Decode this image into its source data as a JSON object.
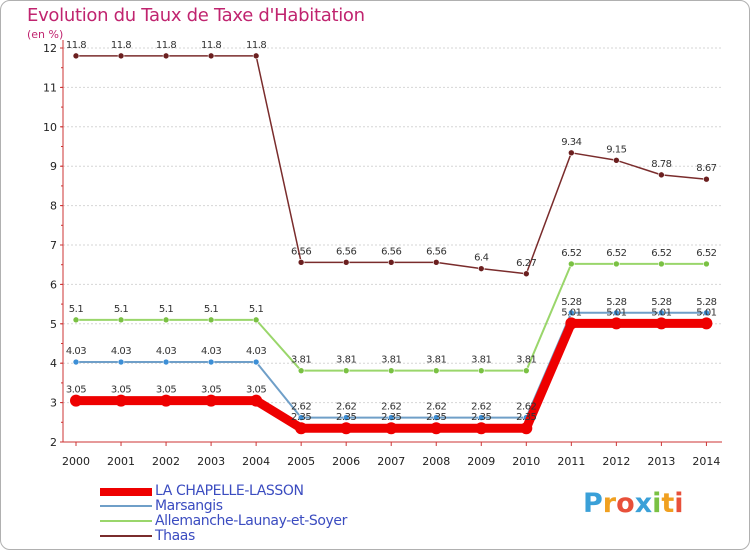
{
  "page": {
    "title": "Evolution du Taux de Taxe d'Habitation",
    "unit": "(en %)"
  },
  "logo": {
    "letters": [
      "P",
      "r",
      "o",
      "x",
      "i",
      "t",
      "i"
    ],
    "colors": [
      "#3aa0d8",
      "#f0a020",
      "#e8503a",
      "#3aa0d8",
      "#7ac143",
      "#f0a020",
      "#e8503a"
    ]
  },
  "chart_data": {
    "type": "line",
    "title": "Evolution du Taux de Taxe d'Habitation",
    "ylabel": "(en %)",
    "xlabel": "",
    "x": [
      "2000",
      "2001",
      "2002",
      "2003",
      "2004",
      "2005",
      "2006",
      "2007",
      "2008",
      "2009",
      "2010",
      "2011",
      "2012",
      "2013",
      "2014"
    ],
    "ylim": [
      2,
      12
    ],
    "yticks": [
      "2",
      "3",
      "4",
      "5",
      "6",
      "7",
      "8",
      "9",
      "10",
      "11",
      "12"
    ],
    "series": [
      {
        "name": "LA CHAPELLE-LASSON",
        "color": "#ee0000",
        "values": [
          3.05,
          3.05,
          3.05,
          3.05,
          3.05,
          2.35,
          2.35,
          2.35,
          2.35,
          2.35,
          2.35,
          5.01,
          5.01,
          5.01,
          5.01
        ],
        "labels": [
          "3.05",
          "3.05",
          "3.05",
          "3.05",
          "3.05",
          "2.35",
          "2.35",
          "2.35",
          "2.35",
          "2.35",
          "2.35",
          "5.01",
          "5.01",
          "5.01",
          "5.01"
        ]
      },
      {
        "name": "Marsangis",
        "color": "#6f9fc8",
        "values": [
          4.03,
          4.03,
          4.03,
          4.03,
          4.03,
          2.62,
          2.62,
          2.62,
          2.62,
          2.62,
          2.62,
          5.28,
          5.28,
          5.28,
          5.28
        ],
        "labels": [
          "4.03",
          "4.03",
          "4.03",
          "4.03",
          "4.03",
          "2.62",
          "2.62",
          "2.62",
          "2.62",
          "2.62",
          "2.62",
          "5.28",
          "5.28",
          "5.28",
          "5.28"
        ]
      },
      {
        "name": "Allemanche-Launay-et-Soyer",
        "color": "#9ad66b",
        "values": [
          5.1,
          5.1,
          5.1,
          5.1,
          5.1,
          3.81,
          3.81,
          3.81,
          3.81,
          3.81,
          3.81,
          6.52,
          6.52,
          6.52,
          6.52
        ],
        "labels": [
          "5.1",
          "5.1",
          "5.1",
          "5.1",
          "5.1",
          "3.81",
          "3.81",
          "3.81",
          "3.81",
          "3.81",
          "3.81",
          "6.52",
          "6.52",
          "6.52",
          "6.52"
        ]
      },
      {
        "name": "Thaas",
        "color": "#7a2c2c",
        "values": [
          11.8,
          11.8,
          11.8,
          11.8,
          11.8,
          6.56,
          6.56,
          6.56,
          6.56,
          6.4,
          6.27,
          9.34,
          9.15,
          8.78,
          8.67
        ],
        "labels": [
          "11.8",
          "11.8",
          "11.8",
          "11.8",
          "11.8",
          "6.56",
          "6.56",
          "6.56",
          "6.56",
          "6.4",
          "6.27",
          "9.34",
          "9.15",
          "8.78",
          "8.67"
        ]
      }
    ]
  }
}
